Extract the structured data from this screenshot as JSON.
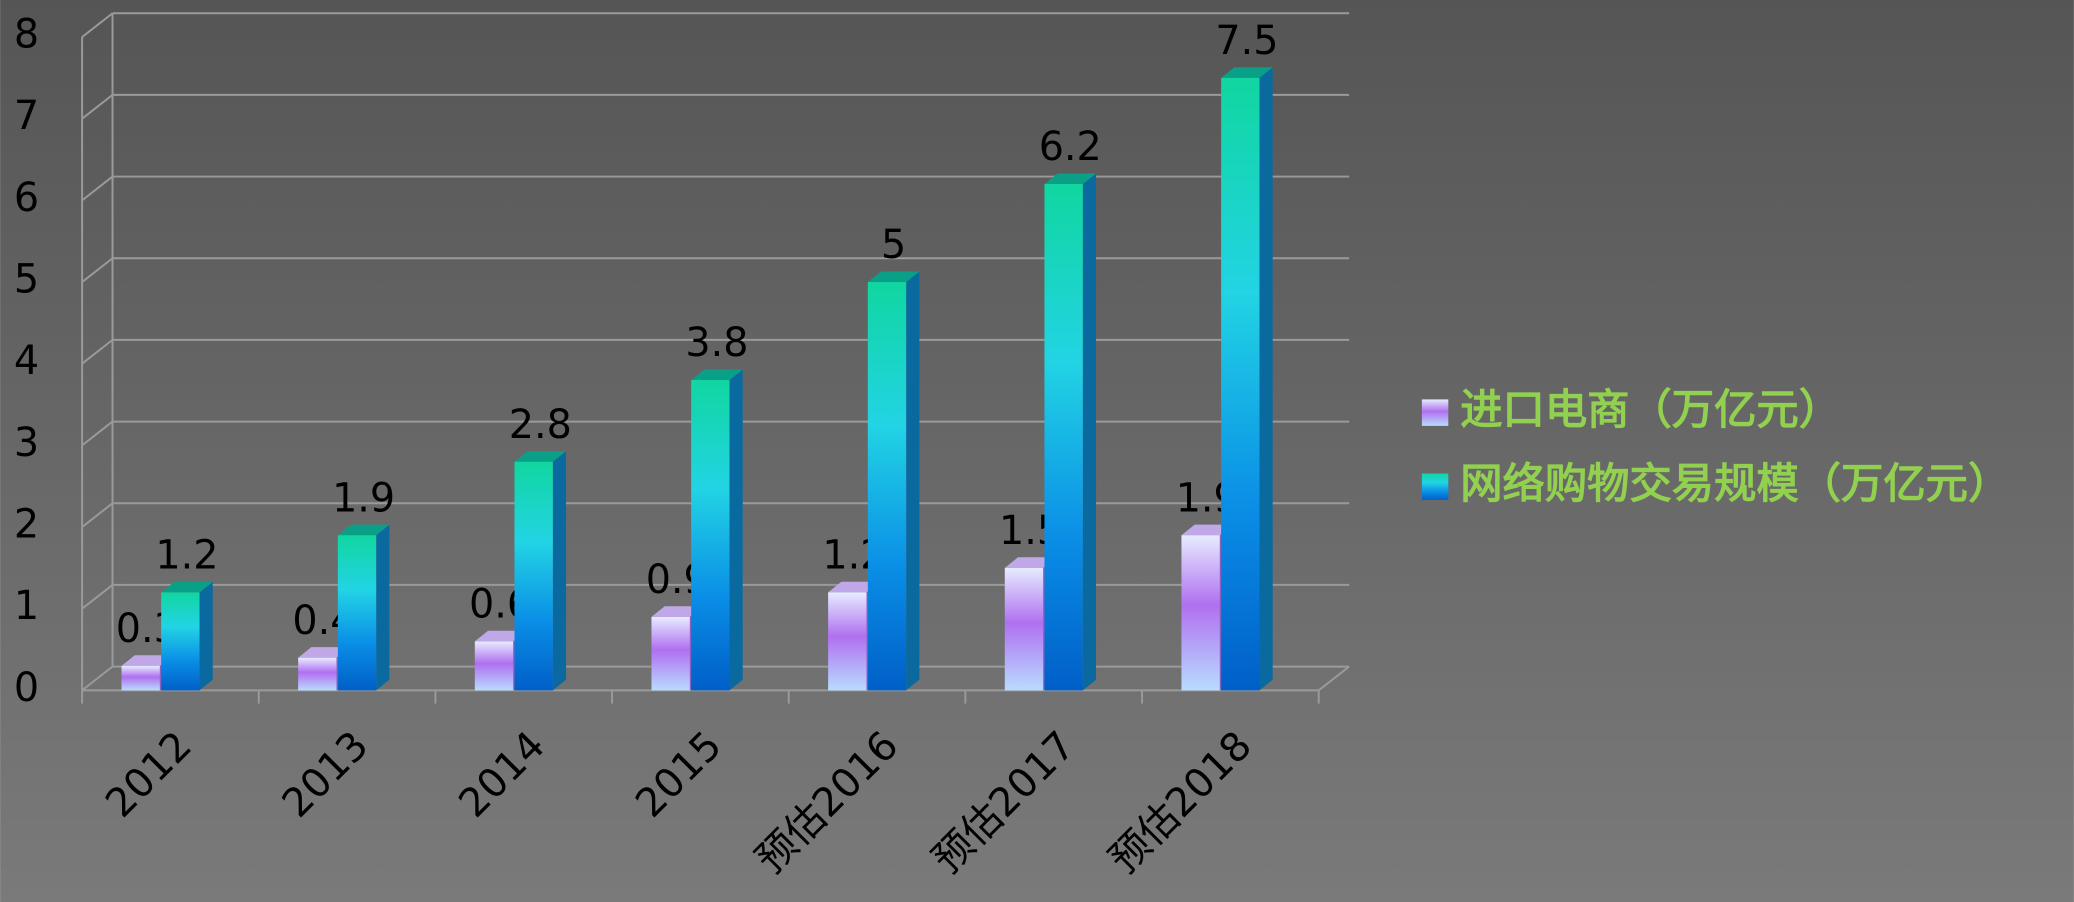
{
  "chart_data": {
    "type": "bar3d",
    "categories": [
      "2012",
      "2013",
      "2014",
      "2015",
      "预估2016",
      "预估2017",
      "预估2018"
    ],
    "series": [
      {
        "name": "进口电商（万亿元）",
        "color": "#b070f0",
        "values": [
          0.3,
          0.4,
          0.6,
          0.9,
          1.2,
          1.5,
          1.9
        ]
      },
      {
        "name": "网络购物交易规模（万亿元）",
        "color": "#22d4e4",
        "values": [
          1.2,
          1.9,
          2.8,
          3.8,
          5,
          6.2,
          7.5
        ]
      }
    ],
    "ylim": [
      0,
      8
    ],
    "yticks": [
      0,
      1,
      2,
      3,
      4,
      5,
      6,
      7,
      8
    ],
    "grid": true,
    "legend": "right"
  }
}
